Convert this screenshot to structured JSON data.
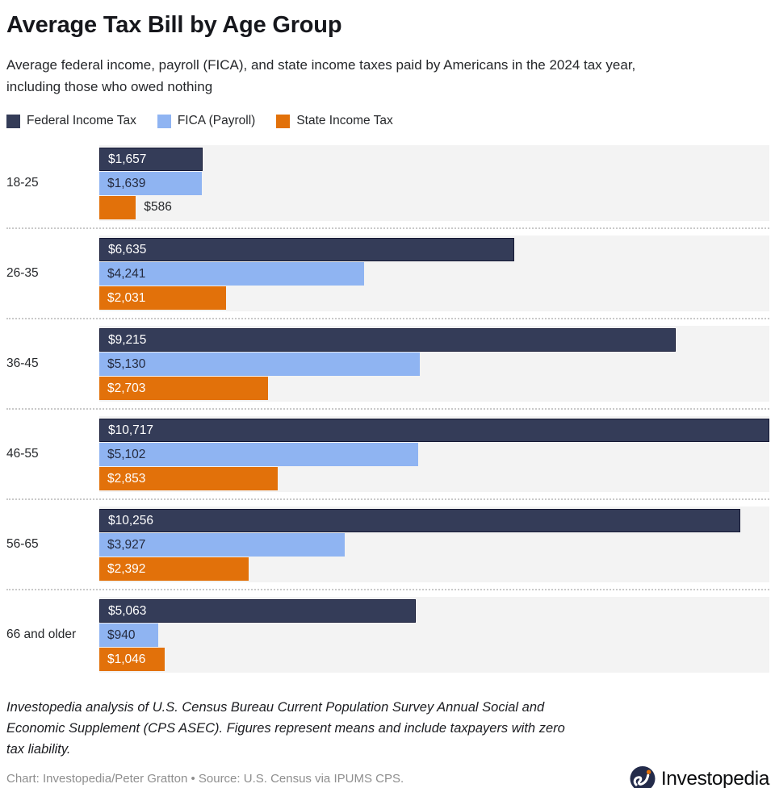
{
  "title": "Average Tax Bill by Age Group",
  "subtitle": "Average federal income, payroll (FICA), and state income taxes paid by Americans in the 2024 tax year, including those who owed nothing",
  "legend": [
    {
      "label": "Federal Income Tax",
      "color": "#343c58"
    },
    {
      "label": "FICA (Payroll)",
      "color": "#8fb4f2"
    },
    {
      "label": "State Income Tax",
      "color": "#e2710a"
    }
  ],
  "chart_data": {
    "type": "bar",
    "orientation": "horizontal",
    "title": "Average Tax Bill by Age Group",
    "categories": [
      "18-25",
      "26-35",
      "36-45",
      "46-55",
      "56-65",
      "66 and older"
    ],
    "series": [
      {
        "name": "Federal Income Tax",
        "color": "#343c58",
        "border": "#141834",
        "label_color": "#ffffff",
        "values": [
          1657,
          6635,
          9215,
          10717,
          10256,
          5063
        ],
        "labels": [
          "$1,657",
          "$6,635",
          "$9,215",
          "$10,717",
          "$10,256",
          "$5,063"
        ]
      },
      {
        "name": "FICA (Payroll)",
        "color": "#8fb4f2",
        "border": "",
        "label_color": "#252b3f",
        "values": [
          1639,
          4241,
          5130,
          5102,
          3927,
          940
        ],
        "labels": [
          "$1,639",
          "$4,241",
          "$5,130",
          "$5,102",
          "$3,927",
          "$940"
        ]
      },
      {
        "name": "State Income Tax",
        "color": "#e2710a",
        "border": "",
        "label_color": "#ffffff",
        "values": [
          586,
          2031,
          2703,
          2853,
          2392,
          1046
        ],
        "labels": [
          "$586",
          "$2,031",
          "$2,703",
          "$2,853",
          "$2,392",
          "$1,046"
        ]
      }
    ],
    "xlim": [
      0,
      10717
    ],
    "plot_background": "#f3f3f3",
    "grid": false,
    "legend_position": "top"
  },
  "footer": {
    "note": "Investopedia analysis of U.S. Census Bureau Current Population Survey Annual Social and Economic Supplement (CPS ASEC). Figures represent means and include taxpayers with zero tax liability.",
    "credit": "Chart: Investopedia/Peter Gratton • Source: U.S. Census via IPUMS CPS.",
    "logo_text": "Investopedia"
  }
}
